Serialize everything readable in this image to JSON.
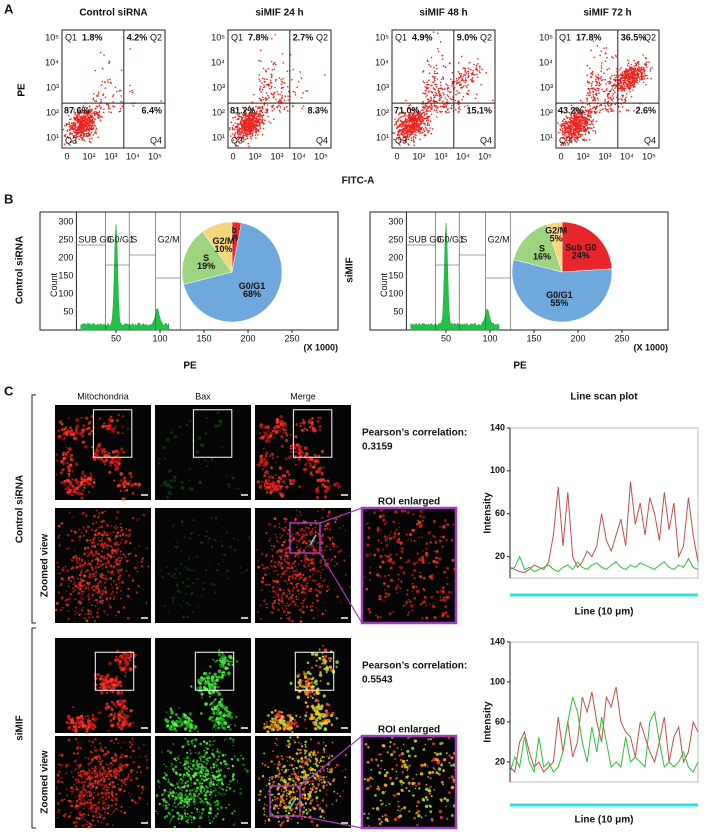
{
  "panel_a": {
    "label": "A",
    "y_label": "PE",
    "x_label": "FITC-A",
    "x_ticks": [
      "0",
      "10²",
      "10³",
      "10⁴",
      "10⁵"
    ],
    "y_ticks": [
      "10¹",
      "10²",
      "10³",
      "10⁴",
      "10⁵"
    ],
    "quadrants": [
      "Q1",
      "Q2",
      "Q3",
      "Q4"
    ],
    "plots": [
      {
        "title": "Control siRNA",
        "q1": "1.8%",
        "q2": "4.2%",
        "q3": "87.6%",
        "q4": "6.4%"
      },
      {
        "title": "siMIF 24 h",
        "q1": "7.8%",
        "q2": "2.7%",
        "q3": "81.2%",
        "q4": "8.3%"
      },
      {
        "title": "siMIF 48 h",
        "q1": "4.9%",
        "q2": "9.0%",
        "q3": "71.0%",
        "q4": "15.1%"
      },
      {
        "title": "siMIF 72 h",
        "q1": "17.8%",
        "q2": "36.5%",
        "q3": "43.2%",
        "q4": "2.6%"
      }
    ]
  },
  "panel_b": {
    "label": "B",
    "x_label": "PE",
    "x_unit": "(X 1000)",
    "y_label": "Count",
    "x_ticks": [
      50,
      100,
      150,
      200,
      250
    ],
    "y_ticks": [
      50,
      100,
      150,
      200,
      250,
      300
    ],
    "gates": [
      "SUB G0",
      "G0/G1",
      "S",
      "G2/M"
    ],
    "samples": [
      {
        "name": "Control siRNA",
        "pie": [
          {
            "name": "Sub G0",
            "value": 3,
            "label": "3%",
            "color": "#e8262b"
          },
          {
            "name": "G0/G1",
            "value": 68,
            "label": "68%",
            "color": "#6fa8dc"
          },
          {
            "name": "S",
            "value": 19,
            "label": "19%",
            "color": "#9dd47f"
          },
          {
            "name": "G2/M",
            "value": 10,
            "label": "10%",
            "color": "#f5d77a"
          }
        ]
      },
      {
        "name": "siMIF",
        "pie": [
          {
            "name": "Sub G0",
            "value": 24,
            "label": "24%",
            "color": "#e8262b"
          },
          {
            "name": "G0/G1",
            "value": 55,
            "label": "55%",
            "color": "#6fa8dc"
          },
          {
            "name": "S",
            "value": 16,
            "label": "16%",
            "color": "#9dd47f"
          },
          {
            "name": "G2/M",
            "value": 5,
            "label": "5%",
            "color": "#f5d77a"
          }
        ]
      }
    ]
  },
  "panel_c": {
    "label": "C",
    "columns": [
      "Mitochondria",
      "Bax",
      "Merge"
    ],
    "zoom_label": "Zoomed view",
    "roi_label": "ROI enlarged",
    "pearson_label": "Pearson’s correlation:",
    "plot_title": "Line scan plot",
    "y_label": "Intensity",
    "x_label": "Line (10 μm)",
    "ylim": [
      0,
      140
    ],
    "yticks": [
      20,
      60,
      100,
      140
    ],
    "groups": [
      {
        "name": "Control siRNA",
        "pearson": "0.3159",
        "series": [
          {
            "color": "#c0504d",
            "values": [
              10,
              8,
              6,
              5,
              8,
              12,
              10,
              8,
              15,
              40,
              85,
              30,
              80,
              20,
              10,
              15,
              25,
              20,
              30,
              60,
              35,
              25,
              40,
              55,
              30,
              90,
              50,
              70,
              40,
              75,
              60,
              35,
              80,
              45,
              70,
              20,
              30,
              75,
              40,
              15
            ]
          },
          {
            "color": "#2cc23a",
            "values": [
              8,
              10,
              20,
              8,
              10,
              6,
              8,
              10,
              12,
              8,
              6,
              10,
              12,
              8,
              15,
              10,
              8,
              12,
              14,
              10,
              8,
              12,
              15,
              10,
              8,
              12,
              10,
              14,
              12,
              10,
              8,
              12,
              15,
              10,
              8,
              12,
              10,
              18,
              10,
              8
            ]
          }
        ]
      },
      {
        "name": "siMIF",
        "pearson": "0.5543",
        "series": [
          {
            "color": "#c0504d",
            "values": [
              15,
              10,
              40,
              50,
              30,
              15,
              20,
              10,
              15,
              20,
              65,
              30,
              60,
              25,
              40,
              85,
              70,
              90,
              60,
              40,
              85,
              75,
              95,
              60,
              50,
              45,
              25,
              60,
              45,
              30,
              20,
              40,
              65,
              20,
              45,
              55,
              20,
              30,
              60,
              50
            ]
          },
          {
            "color": "#2cc23a",
            "values": [
              10,
              25,
              15,
              45,
              20,
              10,
              45,
              15,
              20,
              10,
              15,
              30,
              60,
              85,
              70,
              40,
              20,
              55,
              30,
              65,
              40,
              15,
              20,
              15,
              45,
              20,
              25,
              20,
              15,
              60,
              70,
              40,
              15,
              20,
              15,
              20,
              30,
              15,
              10,
              20
            ]
          }
        ]
      }
    ]
  }
}
